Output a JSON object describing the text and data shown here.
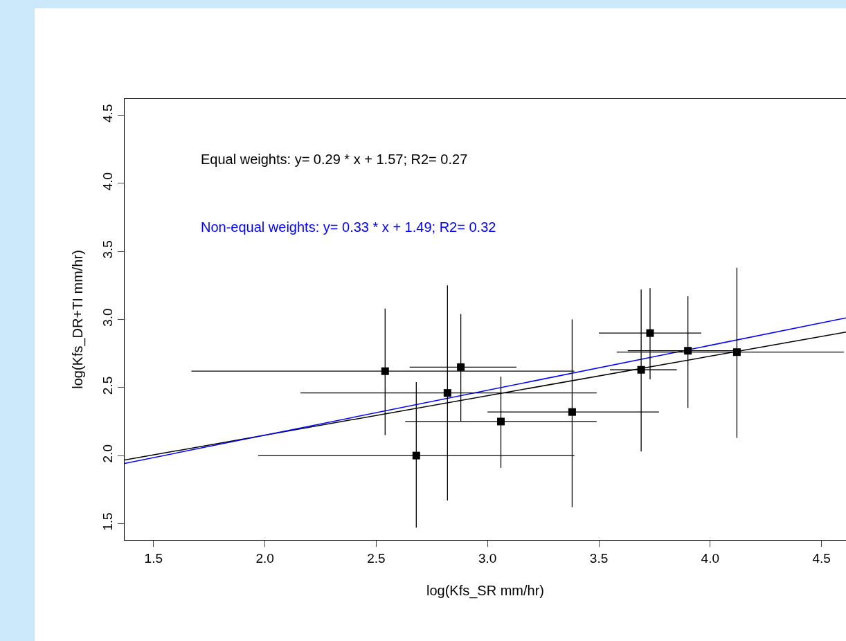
{
  "chart_data": {
    "type": "scatter",
    "xlabel": "log(Kfs_SR mm/hr)",
    "ylabel": "log(Kfs_DR+TI mm/hr)",
    "annotations": [
      "Equal weights: y= 0.29 * x + 1.57; R2= 0.27",
      "Non-equal weights: y= 0.33 * x + 1.49; R2= 0.32"
    ],
    "xlim": [
      1.37,
      4.61
    ],
    "ylim": [
      1.38,
      4.62
    ],
    "xticks": [
      1.5,
      {
        "value": 2,
        "label": "2.0"
      },
      2.5,
      {
        "value": 3,
        "label": "3.0"
      },
      3.5,
      {
        "value": 4,
        "label": "4.0"
      },
      4.5
    ],
    "yticks": [
      1.5,
      {
        "value": 2,
        "label": "2.0"
      },
      2.5,
      {
        "value": 3,
        "label": "3.0"
      },
      3.5,
      {
        "value": 4,
        "label": "4.0"
      },
      4.5
    ],
    "grid": false,
    "marker": "square",
    "series": [
      {
        "color": "#000000",
        "x": [
          2.54,
          2.68,
          2.82,
          2.88,
          3.06,
          3.38,
          3.69,
          3.73,
          3.9,
          4.12
        ],
        "values": [
          2.62,
          2.0,
          2.46,
          2.65,
          2.25,
          2.32,
          2.63,
          2.9,
          2.77,
          2.76
        ],
        "errors": [
          [
            2.15,
            3.08
          ],
          [
            1.47,
            2.54
          ],
          [
            1.67,
            3.25
          ],
          [
            2.25,
            3.04
          ],
          [
            1.91,
            2.58
          ],
          [
            1.62,
            3.0
          ],
          [
            2.03,
            3.22
          ],
          [
            2.56,
            3.23
          ],
          [
            2.35,
            3.17
          ],
          [
            2.13,
            3.38
          ]
        ],
        "xerrors": [
          [
            1.67,
            3.39
          ],
          [
            1.97,
            3.39
          ],
          [
            2.16,
            3.49
          ],
          [
            2.65,
            3.13
          ],
          [
            2.63,
            3.49
          ],
          [
            3.0,
            3.77
          ],
          [
            3.55,
            3.85
          ],
          [
            3.5,
            3.96
          ],
          [
            3.63,
            4.14
          ],
          [
            3.58,
            4.6
          ]
        ]
      },
      {
        "type": "line",
        "color": "#000000",
        "marker": "none",
        "line_style": "solid",
        "x": [
          1.37,
          4.61
        ],
        "values": [
          1.967,
          2.907
        ]
      },
      {
        "type": "line",
        "color": "#0000ff",
        "marker": "none",
        "line_style": "solid",
        "x": [
          1.37,
          4.61
        ],
        "values": [
          1.942,
          3.011
        ]
      }
    ]
  }
}
